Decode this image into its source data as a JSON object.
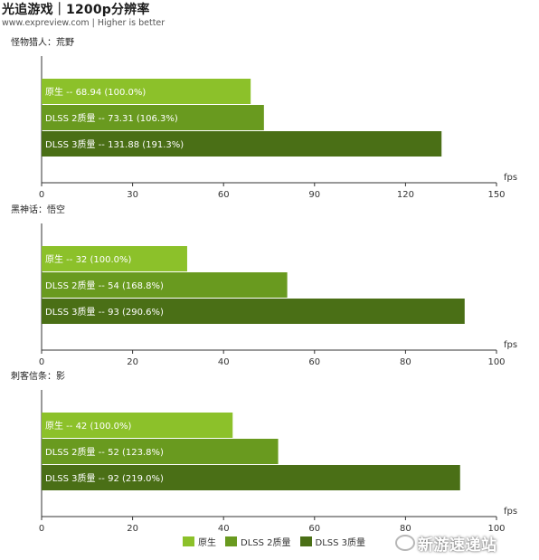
{
  "header": {
    "title": "光追游戏｜1200p分辨率",
    "subtitle": "www.expreview.com | Higher is better"
  },
  "colors": {
    "series1": "#8cc12a",
    "series2": "#699a1f",
    "series3": "#4a6f16",
    "axis": "#333333",
    "bar_text": "#ffffff"
  },
  "chart_data": [
    {
      "type": "bar",
      "orientation": "horizontal",
      "title": "怪物猎人：荒野",
      "xlabel": "fps",
      "xlim": [
        0,
        150
      ],
      "xticks": [
        "0",
        "30",
        "60",
        "90",
        "120",
        "150"
      ],
      "series": [
        {
          "name": "原生",
          "value": 68.94,
          "label": "原生  --  68.94 (100.0%)"
        },
        {
          "name": "DLSS 2质量",
          "value": 73.31,
          "label": "DLSS 2质量  --  73.31 (106.3%)"
        },
        {
          "name": "DLSS 3质量",
          "value": 131.88,
          "label": "DLSS 3质量  --  131.88 (191.3%)"
        }
      ]
    },
    {
      "type": "bar",
      "orientation": "horizontal",
      "title": "黑神话：悟空",
      "xlabel": "fps",
      "xlim": [
        0,
        100
      ],
      "xticks": [
        "0",
        "20",
        "40",
        "60",
        "80",
        "100"
      ],
      "series": [
        {
          "name": "原生",
          "value": 32,
          "label": "原生  --  32 (100.0%)"
        },
        {
          "name": "DLSS 2质量",
          "value": 54,
          "label": "DLSS 2质量  --  54 (168.8%)"
        },
        {
          "name": "DLSS 3质量",
          "value": 93,
          "label": "DLSS 3质量  --  93 (290.6%)"
        }
      ]
    },
    {
      "type": "bar",
      "orientation": "horizontal",
      "title": "刺客信条：影",
      "xlabel": "fps",
      "xlim": [
        0,
        100
      ],
      "xticks": [
        "0",
        "20",
        "40",
        "60",
        "80",
        "100"
      ],
      "series": [
        {
          "name": "原生",
          "value": 42,
          "label": "原生  --  42 (100.0%)"
        },
        {
          "name": "DLSS 2质量",
          "value": 52,
          "label": "DLSS 2质量  --  52 (123.8%)"
        },
        {
          "name": "DLSS 3质量",
          "value": 92,
          "label": "DLSS 3质量  --  92 (219.0%)"
        }
      ]
    }
  ],
  "legend": {
    "items": [
      {
        "label": "原生",
        "color": "#8cc12a"
      },
      {
        "label": "DLSS 2质量",
        "color": "#699a1f"
      },
      {
        "label": "DLSS 3质量",
        "color": "#4a6f16"
      }
    ]
  },
  "watermark": {
    "text": "新游速递站"
  }
}
